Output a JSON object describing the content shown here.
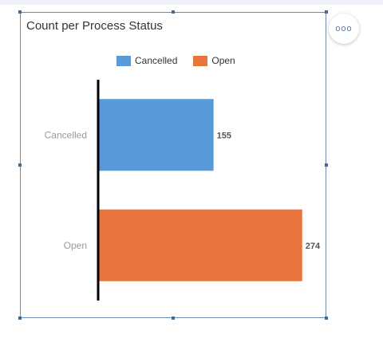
{
  "widget": {
    "title": "Count per Process Status",
    "more_icon": "ooo"
  },
  "colors": {
    "cancelled": "#5899da",
    "open": "#e8743b",
    "axis": "#000000",
    "category_label": "#999999",
    "value_label": "#555555"
  },
  "chart_data": {
    "type": "bar",
    "orientation": "horizontal",
    "title": "Count per Process Status",
    "categories": [
      "Cancelled",
      "Open"
    ],
    "series": [
      {
        "name": "Cancelled",
        "values": [
          155,
          null
        ]
      },
      {
        "name": "Open",
        "values": [
          null,
          274
        ]
      }
    ],
    "values": [
      155,
      274
    ],
    "data_labels": [
      "155",
      "274"
    ],
    "xlim": [
      0,
      300
    ],
    "legend": [
      "Cancelled",
      "Open"
    ],
    "legend_position": "top",
    "grid": false
  }
}
